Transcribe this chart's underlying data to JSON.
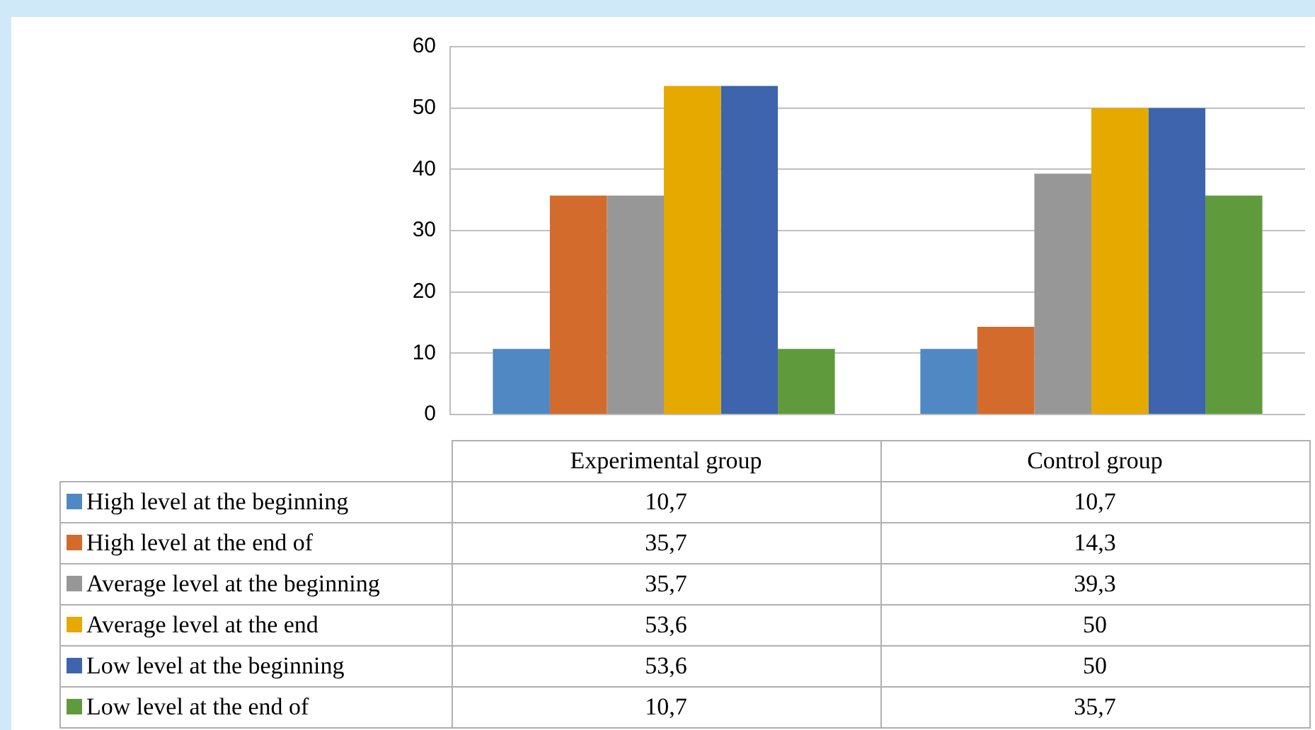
{
  "chart_data": {
    "type": "bar",
    "categories": [
      "Experimental group",
      "Control group"
    ],
    "ylim": [
      0,
      60
    ],
    "yticks": [
      0,
      10,
      20,
      30,
      40,
      50,
      60
    ],
    "grid": "y",
    "legend": "bottom",
    "series": [
      {
        "name": "High level at the beginning",
        "color": "#4f88c2",
        "values": [
          10.7,
          10.7
        ],
        "value_labels": [
          "10,7",
          "10,7"
        ]
      },
      {
        "name": "High level at the end of",
        "color": "#d26b2b",
        "values": [
          35.7,
          14.3
        ],
        "value_labels": [
          "35,7",
          "14,3"
        ]
      },
      {
        "name": "Average level at the beginning",
        "color": "#979797",
        "values": [
          35.7,
          39.3
        ],
        "value_labels": [
          "35,7",
          "39,3"
        ]
      },
      {
        "name": "Average level at the end",
        "color": "#e5a900",
        "values": [
          53.6,
          50
        ],
        "value_labels": [
          "53,6",
          "50"
        ]
      },
      {
        "name": "Low level at the beginning",
        "color": "#3d64ad",
        "values": [
          53.6,
          50
        ],
        "value_labels": [
          "53,6",
          "50"
        ]
      },
      {
        "name": "Low level at the end of",
        "color": "#5f9a3c",
        "values": [
          10.7,
          35.7
        ],
        "value_labels": [
          "10,7",
          "35,7"
        ]
      }
    ]
  }
}
